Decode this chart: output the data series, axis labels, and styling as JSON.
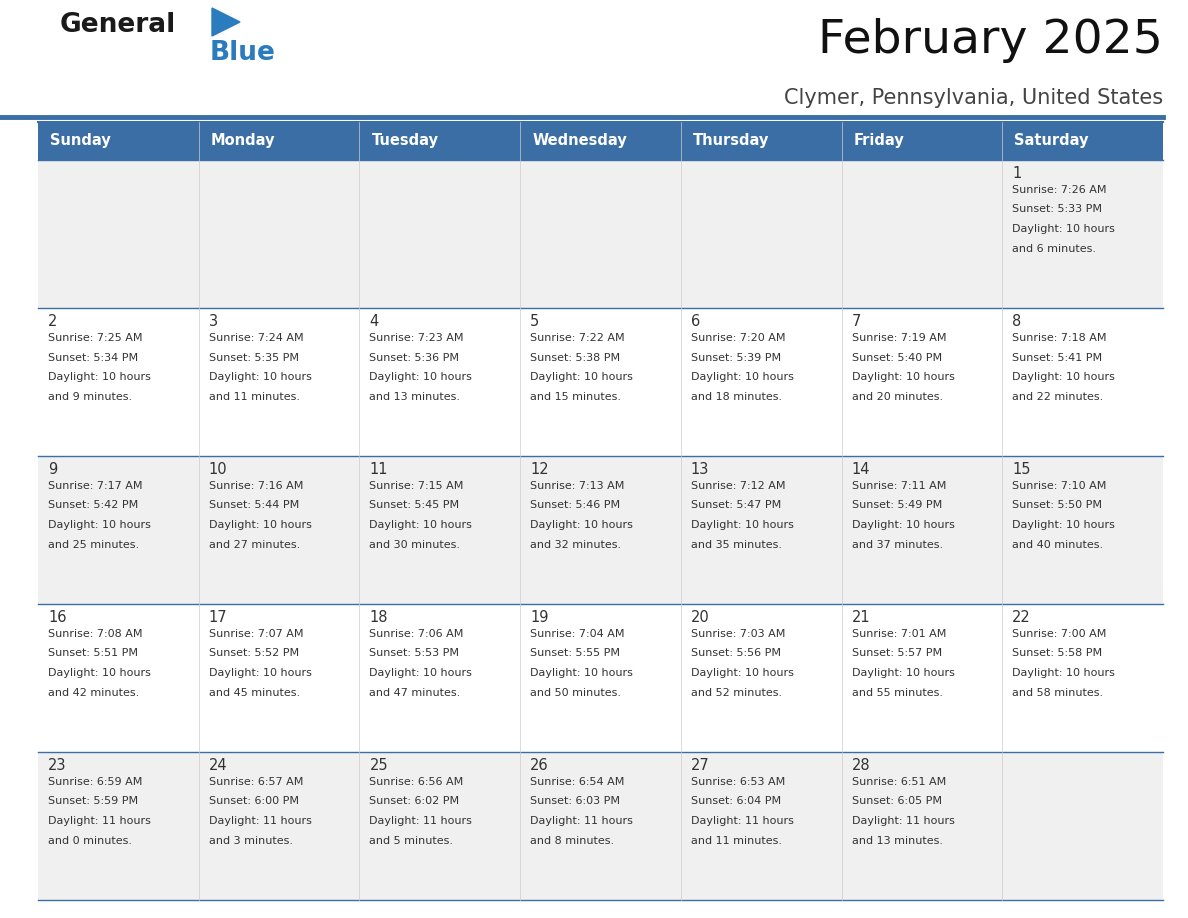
{
  "title": "February 2025",
  "subtitle": "Clymer, Pennsylvania, United States",
  "header_bg": "#3a6ea5",
  "header_text_color": "#ffffff",
  "cell_bg_odd": "#f0f0f0",
  "cell_bg_even": "#ffffff",
  "separator_color": "#3a6ea5",
  "text_color": "#333333",
  "days_of_week": [
    "Sunday",
    "Monday",
    "Tuesday",
    "Wednesday",
    "Thursday",
    "Friday",
    "Saturday"
  ],
  "calendar_data": [
    [
      {
        "day": "",
        "sunrise": "",
        "sunset": "",
        "daylight": ""
      },
      {
        "day": "",
        "sunrise": "",
        "sunset": "",
        "daylight": ""
      },
      {
        "day": "",
        "sunrise": "",
        "sunset": "",
        "daylight": ""
      },
      {
        "day": "",
        "sunrise": "",
        "sunset": "",
        "daylight": ""
      },
      {
        "day": "",
        "sunrise": "",
        "sunset": "",
        "daylight": ""
      },
      {
        "day": "",
        "sunrise": "",
        "sunset": "",
        "daylight": ""
      },
      {
        "day": "1",
        "sunrise": "7:26 AM",
        "sunset": "5:33 PM",
        "daylight": "10 hours and 6 minutes."
      }
    ],
    [
      {
        "day": "2",
        "sunrise": "7:25 AM",
        "sunset": "5:34 PM",
        "daylight": "10 hours and 9 minutes."
      },
      {
        "day": "3",
        "sunrise": "7:24 AM",
        "sunset": "5:35 PM",
        "daylight": "10 hours and 11 minutes."
      },
      {
        "day": "4",
        "sunrise": "7:23 AM",
        "sunset": "5:36 PM",
        "daylight": "10 hours and 13 minutes."
      },
      {
        "day": "5",
        "sunrise": "7:22 AM",
        "sunset": "5:38 PM",
        "daylight": "10 hours and 15 minutes."
      },
      {
        "day": "6",
        "sunrise": "7:20 AM",
        "sunset": "5:39 PM",
        "daylight": "10 hours and 18 minutes."
      },
      {
        "day": "7",
        "sunrise": "7:19 AM",
        "sunset": "5:40 PM",
        "daylight": "10 hours and 20 minutes."
      },
      {
        "day": "8",
        "sunrise": "7:18 AM",
        "sunset": "5:41 PM",
        "daylight": "10 hours and 22 minutes."
      }
    ],
    [
      {
        "day": "9",
        "sunrise": "7:17 AM",
        "sunset": "5:42 PM",
        "daylight": "10 hours and 25 minutes."
      },
      {
        "day": "10",
        "sunrise": "7:16 AM",
        "sunset": "5:44 PM",
        "daylight": "10 hours and 27 minutes."
      },
      {
        "day": "11",
        "sunrise": "7:15 AM",
        "sunset": "5:45 PM",
        "daylight": "10 hours and 30 minutes."
      },
      {
        "day": "12",
        "sunrise": "7:13 AM",
        "sunset": "5:46 PM",
        "daylight": "10 hours and 32 minutes."
      },
      {
        "day": "13",
        "sunrise": "7:12 AM",
        "sunset": "5:47 PM",
        "daylight": "10 hours and 35 minutes."
      },
      {
        "day": "14",
        "sunrise": "7:11 AM",
        "sunset": "5:49 PM",
        "daylight": "10 hours and 37 minutes."
      },
      {
        "day": "15",
        "sunrise": "7:10 AM",
        "sunset": "5:50 PM",
        "daylight": "10 hours and 40 minutes."
      }
    ],
    [
      {
        "day": "16",
        "sunrise": "7:08 AM",
        "sunset": "5:51 PM",
        "daylight": "10 hours and 42 minutes."
      },
      {
        "day": "17",
        "sunrise": "7:07 AM",
        "sunset": "5:52 PM",
        "daylight": "10 hours and 45 minutes."
      },
      {
        "day": "18",
        "sunrise": "7:06 AM",
        "sunset": "5:53 PM",
        "daylight": "10 hours and 47 minutes."
      },
      {
        "day": "19",
        "sunrise": "7:04 AM",
        "sunset": "5:55 PM",
        "daylight": "10 hours and 50 minutes."
      },
      {
        "day": "20",
        "sunrise": "7:03 AM",
        "sunset": "5:56 PM",
        "daylight": "10 hours and 52 minutes."
      },
      {
        "day": "21",
        "sunrise": "7:01 AM",
        "sunset": "5:57 PM",
        "daylight": "10 hours and 55 minutes."
      },
      {
        "day": "22",
        "sunrise": "7:00 AM",
        "sunset": "5:58 PM",
        "daylight": "10 hours and 58 minutes."
      }
    ],
    [
      {
        "day": "23",
        "sunrise": "6:59 AM",
        "sunset": "5:59 PM",
        "daylight": "11 hours and 0 minutes."
      },
      {
        "day": "24",
        "sunrise": "6:57 AM",
        "sunset": "6:00 PM",
        "daylight": "11 hours and 3 minutes."
      },
      {
        "day": "25",
        "sunrise": "6:56 AM",
        "sunset": "6:02 PM",
        "daylight": "11 hours and 5 minutes."
      },
      {
        "day": "26",
        "sunrise": "6:54 AM",
        "sunset": "6:03 PM",
        "daylight": "11 hours and 8 minutes."
      },
      {
        "day": "27",
        "sunrise": "6:53 AM",
        "sunset": "6:04 PM",
        "daylight": "11 hours and 11 minutes."
      },
      {
        "day": "28",
        "sunrise": "6:51 AM",
        "sunset": "6:05 PM",
        "daylight": "11 hours and 13 minutes."
      },
      {
        "day": "",
        "sunrise": "",
        "sunset": "",
        "daylight": ""
      }
    ]
  ],
  "logo_color_general": "#1a1a1a",
  "logo_color_blue": "#2b7bbf",
  "logo_triangle_color": "#2b7bbf",
  "fig_width": 11.88,
  "fig_height": 9.18,
  "dpi": 100
}
